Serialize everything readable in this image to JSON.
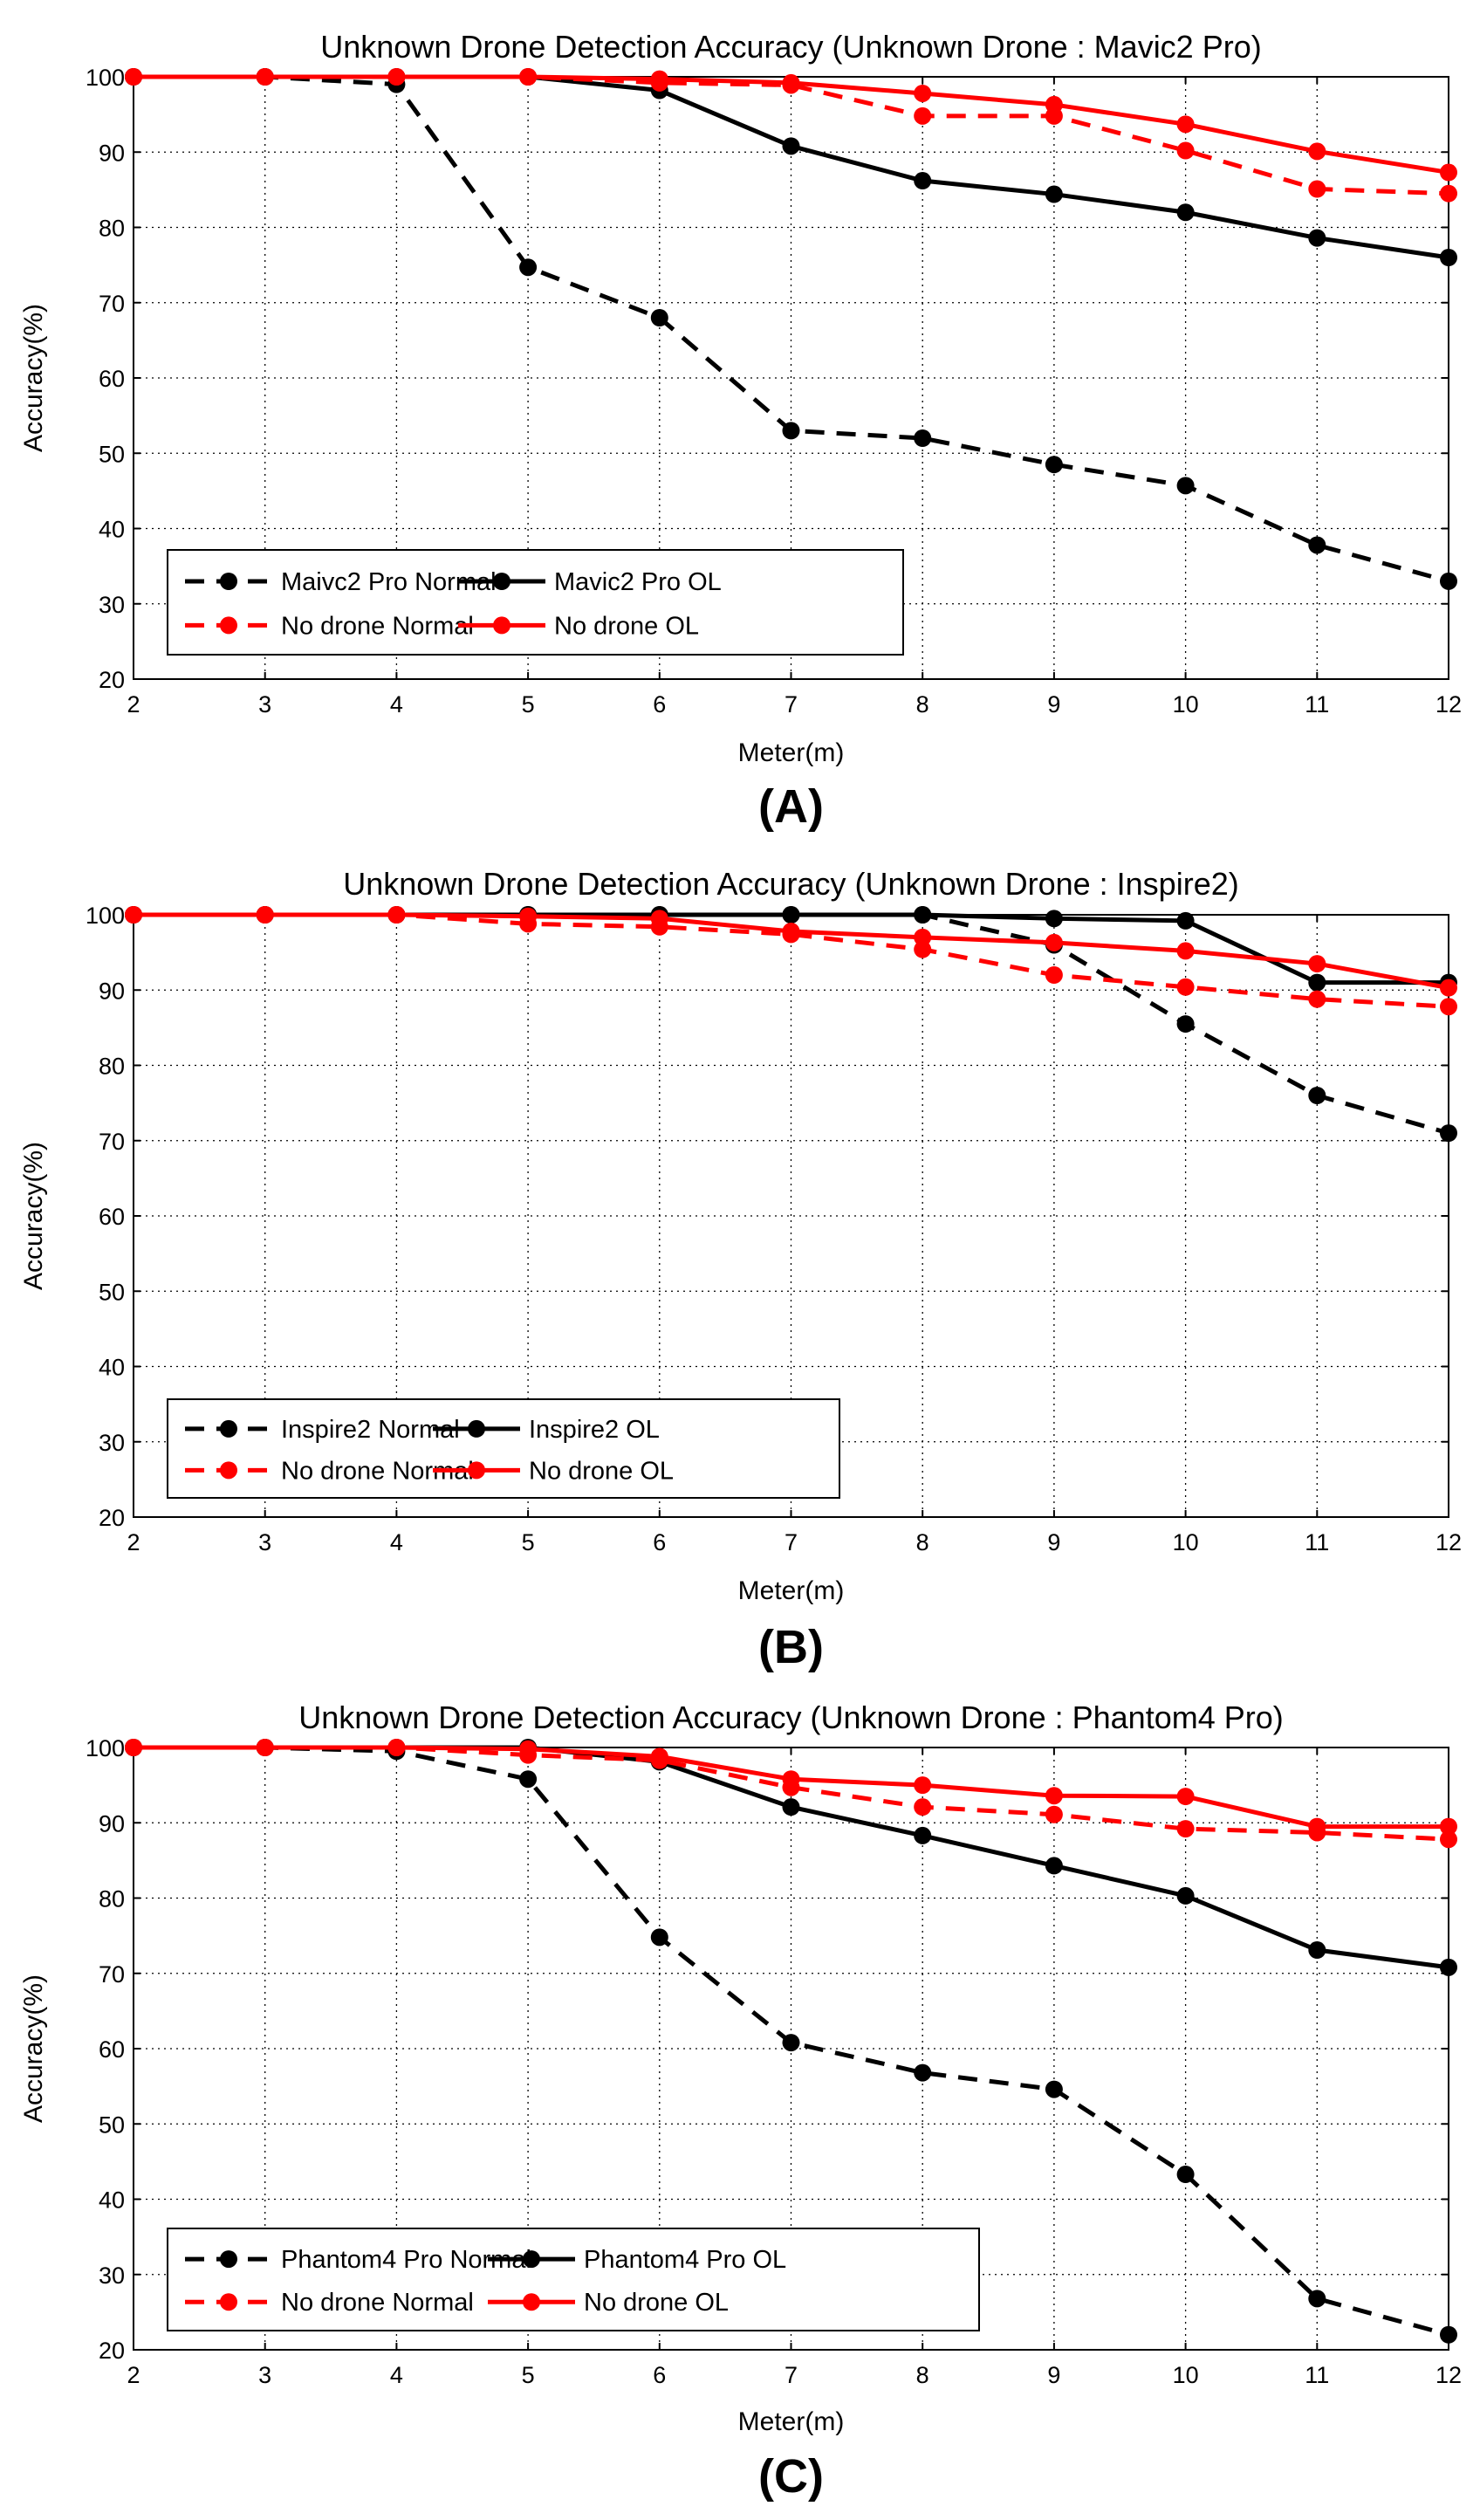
{
  "chart_data": [
    {
      "type": "line",
      "panel_label": "(A)",
      "title": "Unknown Drone Detection Accuracy (Unknown Drone : Mavic2 Pro)",
      "xlabel": "Meter(m)",
      "ylabel": "Accuracy(%)",
      "x": [
        2,
        3,
        4,
        5,
        6,
        7,
        8,
        9,
        10,
        11,
        12
      ],
      "xlim": [
        2,
        12
      ],
      "ylim": [
        20,
        100
      ],
      "yticks": [
        20,
        30,
        40,
        50,
        60,
        70,
        80,
        90,
        100
      ],
      "grid": true,
      "legend_position": "bottom-left",
      "series": [
        {
          "name": "Maivc2 Pro Normal",
          "color": "#000000",
          "dashed": true,
          "values": [
            100,
            100,
            99,
            74.7,
            68,
            53,
            52,
            48.5,
            45.7,
            37.8,
            33
          ]
        },
        {
          "name": "Mavic2 Pro OL",
          "color": "#000000",
          "dashed": false,
          "values": [
            100,
            100,
            100,
            100,
            98.2,
            90.8,
            86.2,
            84.4,
            82,
            78.6,
            76
          ]
        },
        {
          "name": "No drone Normal",
          "color": "#ff0000",
          "dashed": true,
          "values": [
            100,
            100,
            100,
            100,
            99.2,
            98.9,
            94.8,
            94.8,
            90.2,
            85.1,
            84.5
          ]
        },
        {
          "name": "No drone OL",
          "color": "#ff0000",
          "dashed": false,
          "values": [
            100,
            100,
            100,
            100,
            99.7,
            99.2,
            97.8,
            96.3,
            93.7,
            90.1,
            87.3
          ]
        }
      ]
    },
    {
      "type": "line",
      "panel_label": "(B)",
      "title": "Unknown Drone Detection Accuracy (Unknown Drone : Inspire2)",
      "xlabel": "Meter(m)",
      "ylabel": "Accuracy(%)",
      "x": [
        2,
        3,
        4,
        5,
        6,
        7,
        8,
        9,
        10,
        11,
        12
      ],
      "xlim": [
        2,
        12
      ],
      "ylim": [
        20,
        100
      ],
      "yticks": [
        20,
        30,
        40,
        50,
        60,
        70,
        80,
        90,
        100
      ],
      "grid": true,
      "legend_position": "bottom-left",
      "series": [
        {
          "name": "Inspire2 Normal",
          "color": "#000000",
          "dashed": true,
          "values": [
            100,
            100,
            100,
            100,
            100,
            100,
            100,
            96,
            85.5,
            76,
            71
          ]
        },
        {
          "name": "Inspire2 OL",
          "color": "#000000",
          "dashed": false,
          "values": [
            100,
            100,
            100,
            100,
            100,
            100,
            100,
            99.5,
            99.2,
            91,
            91
          ]
        },
        {
          "name": "No drone Normal",
          "color": "#ff0000",
          "dashed": true,
          "values": [
            100,
            100,
            100,
            98.8,
            98.4,
            97.4,
            95.4,
            92,
            90.4,
            88.8,
            87.8
          ]
        },
        {
          "name": "No drone OL",
          "color": "#ff0000",
          "dashed": false,
          "values": [
            100,
            100,
            100,
            99.8,
            99.5,
            97.8,
            97,
            96.3,
            95.2,
            93.5,
            90.3
          ]
        }
      ]
    },
    {
      "type": "line",
      "panel_label": "(C)",
      "title": "Unknown Drone Detection Accuracy (Unknown Drone : Phantom4 Pro)",
      "xlabel": "Meter(m)",
      "ylabel": "Accuracy(%)",
      "x": [
        2,
        3,
        4,
        5,
        6,
        7,
        8,
        9,
        10,
        11,
        12
      ],
      "xlim": [
        2,
        12
      ],
      "ylim": [
        20,
        100
      ],
      "yticks": [
        20,
        30,
        40,
        50,
        60,
        70,
        80,
        90,
        100
      ],
      "grid": true,
      "legend_position": "bottom-left",
      "series": [
        {
          "name": "Phantom4 Pro Normal",
          "color": "#000000",
          "dashed": true,
          "values": [
            100,
            100,
            99.5,
            95.8,
            74.8,
            60.8,
            56.8,
            54.6,
            43.3,
            26.8,
            22
          ]
        },
        {
          "name": "Phantom4 Pro OL",
          "color": "#000000",
          "dashed": false,
          "values": [
            100,
            100,
            100,
            100,
            98.1,
            92.1,
            88.3,
            84.3,
            80.3,
            73.1,
            70.8
          ]
        },
        {
          "name": "No drone Normal",
          "color": "#ff0000",
          "dashed": true,
          "values": [
            100,
            100,
            100,
            99,
            98.3,
            94.7,
            92.1,
            91.1,
            89.2,
            88.7,
            87.8
          ]
        },
        {
          "name": "No drone OL",
          "color": "#ff0000",
          "dashed": false,
          "values": [
            100,
            100,
            100,
            99.8,
            98.8,
            95.8,
            95,
            93.6,
            93.5,
            89.5,
            89.5
          ]
        }
      ]
    }
  ]
}
